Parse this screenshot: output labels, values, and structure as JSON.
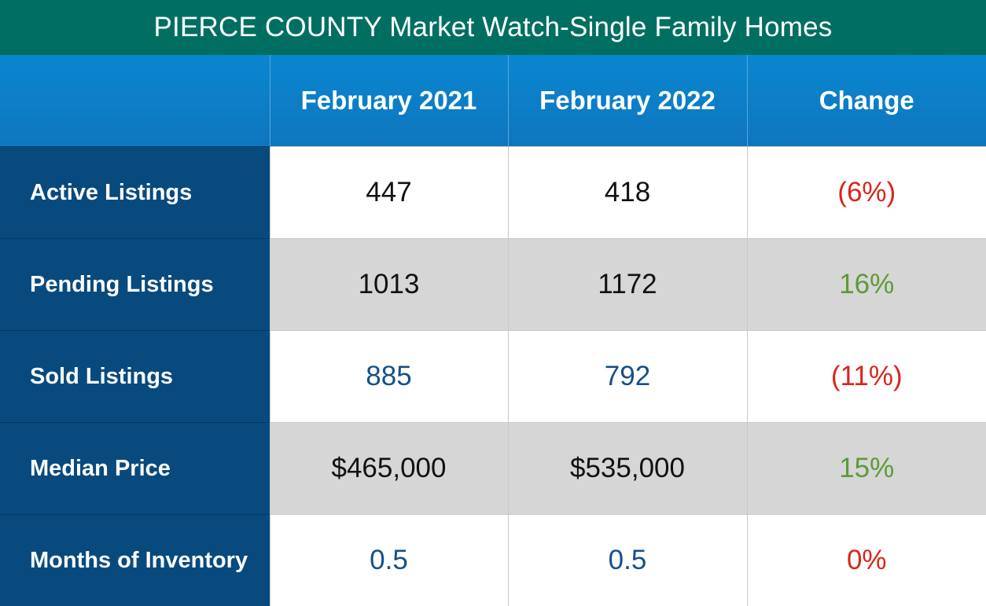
{
  "title": "PIERCE COUNTY Market Watch-Single Family Homes",
  "colors": {
    "title_bg": "#006f62",
    "header_bg": "#0e76be",
    "label_bg": "#084a7d",
    "row_alt_bg": "#d6d6d6",
    "value_black": "#111111",
    "value_navy": "#15508a",
    "change_negative": "#d9251b",
    "change_positive": "#5c9a37"
  },
  "columns": [
    "",
    "February 2021",
    "February 2022",
    "Change"
  ],
  "rows": [
    {
      "label": "Active Listings",
      "feb2021": "447",
      "feb2022": "418",
      "change": "(6%)"
    },
    {
      "label": "Pending Listings",
      "feb2021": "1013",
      "feb2022": "1172",
      "change": "16%"
    },
    {
      "label": "Sold Listings",
      "feb2021": "885",
      "feb2022": "792",
      "change": "(11%)"
    },
    {
      "label": "Median Price",
      "feb2021": "$465,000",
      "feb2022": "$535,000",
      "change": "15%"
    },
    {
      "label": "Months of Inventory",
      "feb2021": "0.5",
      "feb2022": "0.5",
      "change": "0%"
    }
  ]
}
